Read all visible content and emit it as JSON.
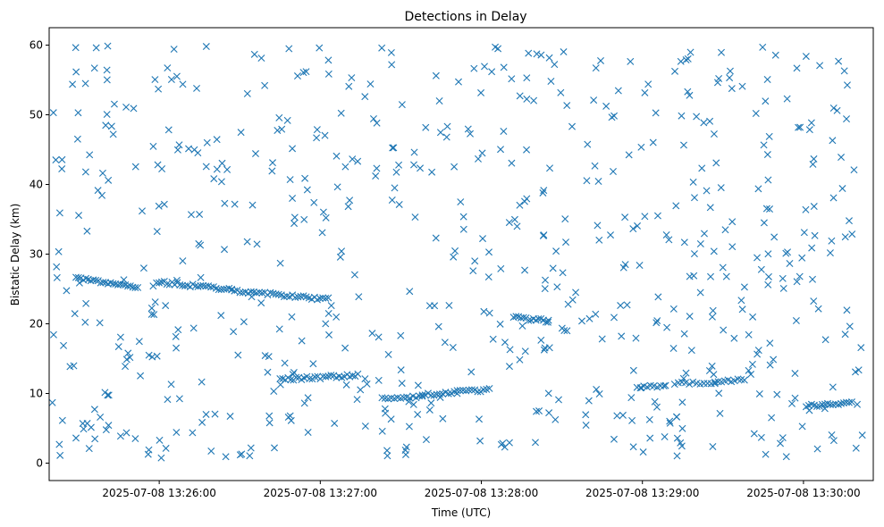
{
  "chart_data": {
    "type": "scatter",
    "title": "Detections in Delay",
    "xlabel": "Time (UTC)",
    "ylabel": "Bistatic Delay (km)",
    "xlim": [
      "2025-07-08 13:25:19",
      "2025-07-08 13:30:26"
    ],
    "ylim": [
      -2.5,
      62.5
    ],
    "xticks": [
      "2025-07-08 13:26:00",
      "2025-07-08 13:27:00",
      "2025-07-08 13:28:00",
      "2025-07-08 13:29:00",
      "2025-07-08 13:30:00"
    ],
    "yticks": [
      0,
      10,
      20,
      30,
      40,
      50,
      60
    ],
    "grid": false,
    "marker": "x",
    "color": "#1f77b4",
    "tracks": [
      {
        "start": "2025-07-08 13:25:29",
        "end": "2025-07-08 13:25:52",
        "y_start": 26.6,
        "y_end": 25.3,
        "points": 26
      },
      {
        "start": "2025-07-08 13:25:59",
        "end": "2025-07-08 13:26:27",
        "y_start": 26.0,
        "y_end": 24.9,
        "points": 30
      },
      {
        "start": "2025-07-08 13:26:27",
        "end": "2025-07-08 13:27:03",
        "y_start": 24.8,
        "y_end": 23.5,
        "points": 36
      },
      {
        "start": "2025-07-08 13:26:45",
        "end": "2025-07-08 13:27:14",
        "y_start": 12.0,
        "y_end": 12.6,
        "points": 30
      },
      {
        "start": "2025-07-08 13:27:23",
        "end": "2025-07-08 13:27:38",
        "y_start": 9.3,
        "y_end": 9.6,
        "points": 14
      },
      {
        "start": "2025-07-08 13:27:38",
        "end": "2025-07-08 13:27:51",
        "y_start": 9.8,
        "y_end": 10.1,
        "points": 13
      },
      {
        "start": "2025-07-08 13:27:51",
        "end": "2025-07-08 13:28:03",
        "y_start": 10.3,
        "y_end": 10.5,
        "points": 12
      },
      {
        "start": "2025-07-08 13:28:12",
        "end": "2025-07-08 13:28:25",
        "y_start": 20.9,
        "y_end": 20.4,
        "points": 15
      },
      {
        "start": "2025-07-08 13:28:58",
        "end": "2025-07-08 13:29:08",
        "y_start": 11.0,
        "y_end": 11.1,
        "points": 9
      },
      {
        "start": "2025-07-08 13:29:12",
        "end": "2025-07-08 13:29:27",
        "y_start": 11.5,
        "y_end": 11.6,
        "points": 12
      },
      {
        "start": "2025-07-08 13:29:27",
        "end": "2025-07-08 13:29:38",
        "y_start": 11.8,
        "y_end": 12.0,
        "points": 10
      },
      {
        "start": "2025-07-08 13:30:01",
        "end": "2025-07-08 13:30:10",
        "y_start": 8.2,
        "y_end": 8.4,
        "points": 10
      },
      {
        "start": "2025-07-08 13:30:11",
        "end": "2025-07-08 13:30:18",
        "y_start": 8.4,
        "y_end": 8.6,
        "points": 8
      }
    ],
    "clutter": {
      "points": 640,
      "x_range": [
        "2025-07-08 13:25:20",
        "2025-07-08 13:30:22"
      ],
      "y_range": [
        0.5,
        60
      ]
    }
  }
}
